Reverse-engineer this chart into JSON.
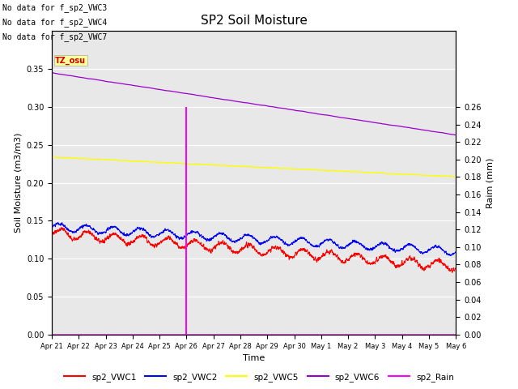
{
  "title": "SP2 Soil Moisture",
  "ylabel_left": "Soil Moisture (m3/m3)",
  "ylabel_right": "Raim (mm)",
  "xlabel": "Time",
  "no_data_labels": [
    "No data for f_sp2_VWC3",
    "No data for f_sp2_VWC4",
    "No data for f_sp2_VWC7"
  ],
  "tz_label": "TZ_osu",
  "x_tick_labels": [
    "Apr 21",
    "Apr 22",
    "Apr 23",
    "Apr 24",
    "Apr 25",
    "Apr 26",
    "Apr 27",
    "Apr 28",
    "Apr 29",
    "Apr 30",
    "May 1",
    "May 2",
    "May 3",
    "May 4",
    "May 5",
    "May 6"
  ],
  "ylim_left": [
    0.0,
    0.4
  ],
  "ylim_right": [
    0.0,
    0.3466
  ],
  "yticks_left": [
    0.0,
    0.05,
    0.1,
    0.15,
    0.2,
    0.25,
    0.3,
    0.35
  ],
  "yticks_right": [
    0.0,
    0.02,
    0.04,
    0.06,
    0.08,
    0.1,
    0.12,
    0.14,
    0.16,
    0.18,
    0.2,
    0.22,
    0.24,
    0.26
  ],
  "rain_bar_height": 0.26,
  "rain_bar_color": "#FF00FF",
  "vwc1_color": "#FF0000",
  "vwc2_color": "#0000FF",
  "vwc5_color": "#FFFF00",
  "vwc6_color": "#9900CC",
  "rain_line_color": "#FF00FF",
  "background_color": "#E8E8E8",
  "grid_color": "#FFFFFF",
  "legend_items": [
    "sp2_VWC1",
    "sp2_VWC2",
    "sp2_VWC5",
    "sp2_VWC6",
    "sp2_Rain"
  ],
  "legend_colors": [
    "#FF0000",
    "#0000FF",
    "#FFFF00",
    "#9900CC",
    "#FF00FF"
  ],
  "tick_fontsize": 7,
  "label_fontsize": 8,
  "title_fontsize": 11
}
